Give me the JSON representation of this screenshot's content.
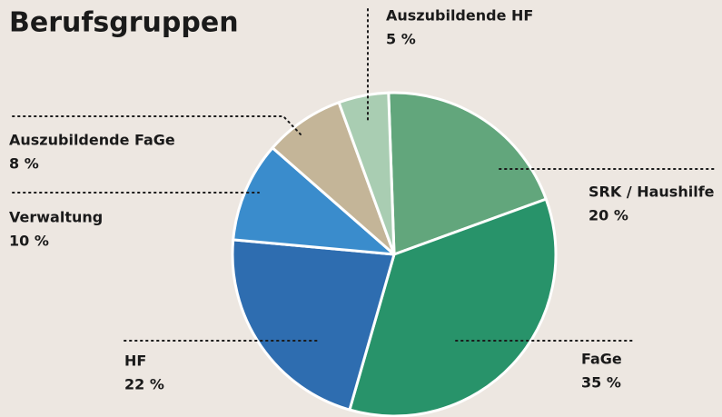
{
  "chart_data": {
    "type": "pie",
    "title": "Berufsgruppen",
    "categories": [
      "SRK / Haushilfe",
      "FaGe",
      "HF",
      "Verwaltung",
      "Auszubildende FaGe",
      "Auszubildende HF"
    ],
    "values": [
      20,
      35,
      22,
      10,
      8,
      5
    ],
    "value_labels": [
      "20 %",
      "35 %",
      "22 %",
      "10 %",
      "8 %",
      "5 %"
    ],
    "colors": [
      "#62a67c",
      "#28936a",
      "#2e6db0",
      "#3a8ccc",
      "#c4b598",
      "#a9cdb2"
    ]
  }
}
